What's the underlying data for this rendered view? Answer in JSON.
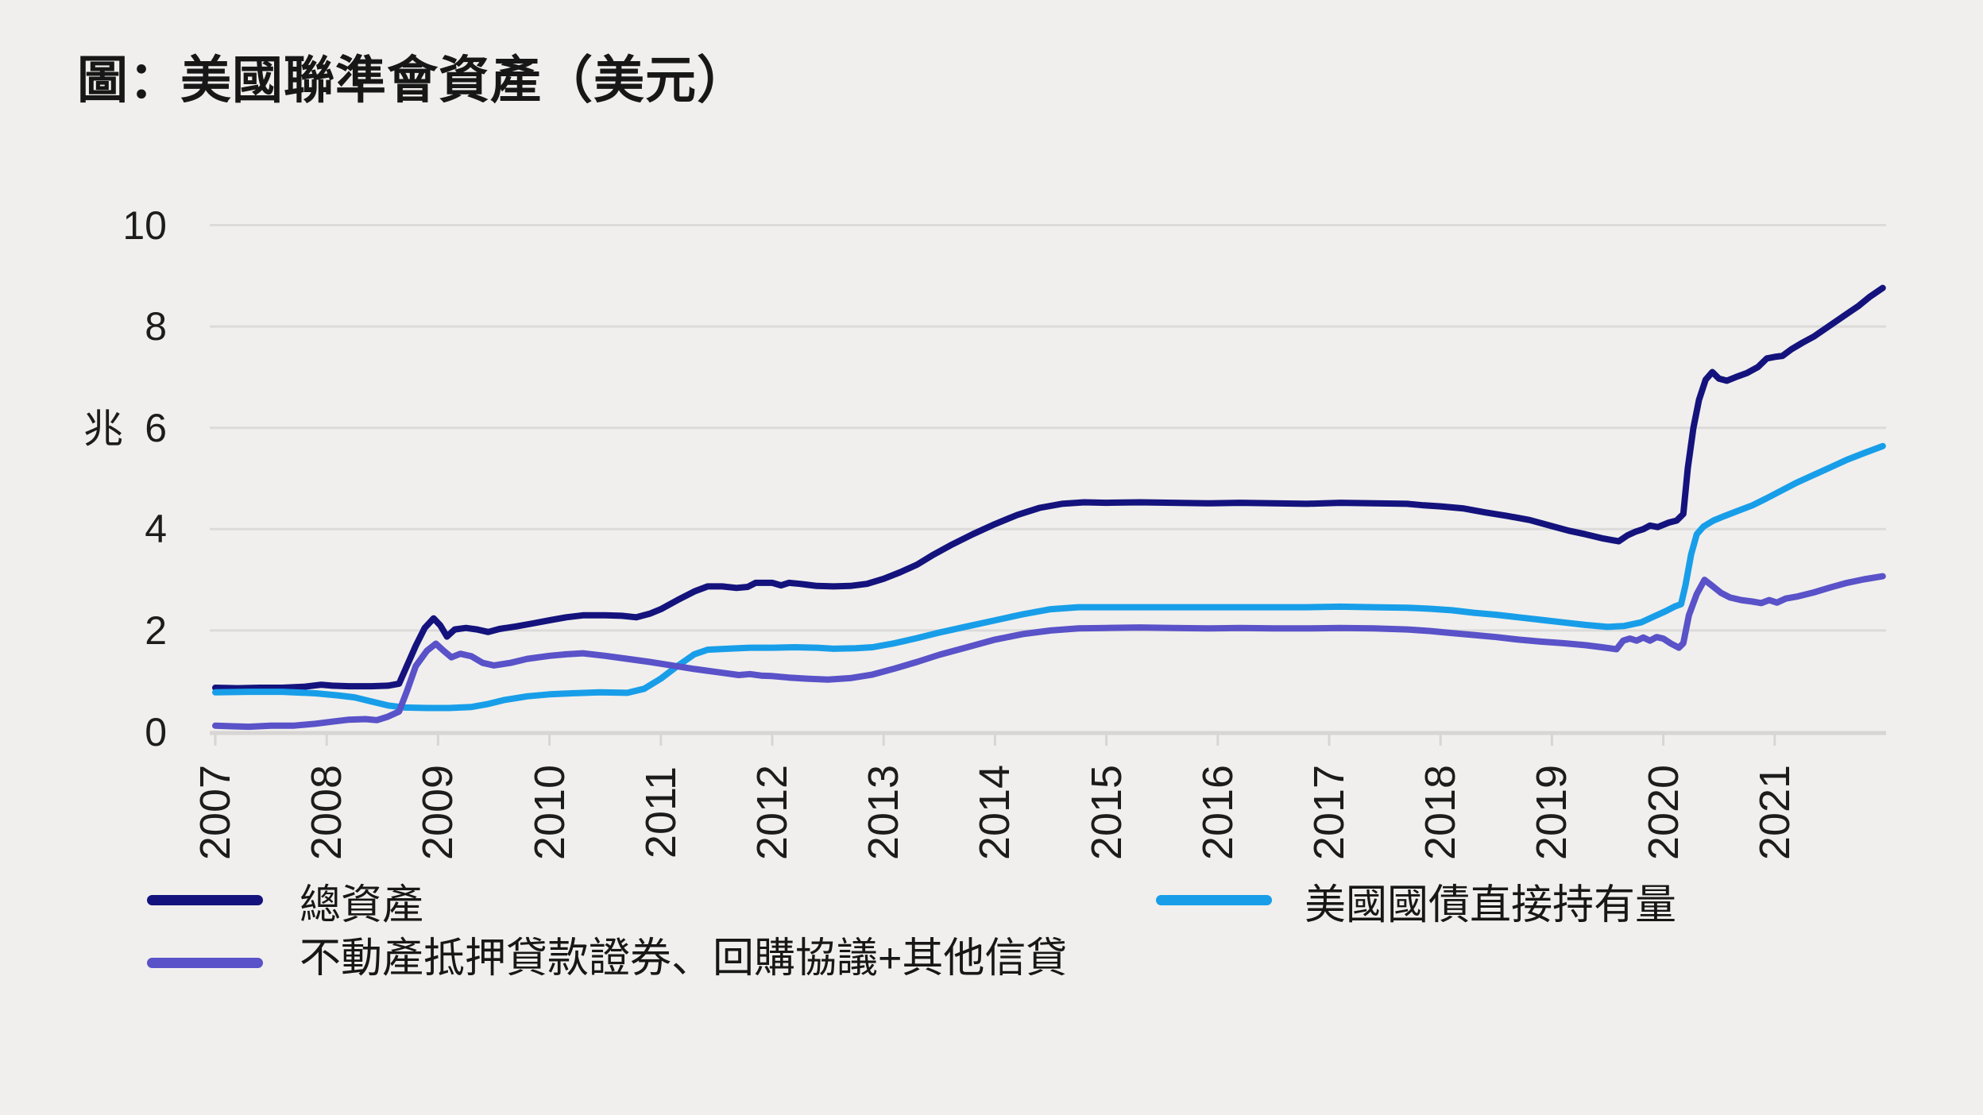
{
  "page": {
    "background": "#f0efed",
    "text_color": "#1a1a1a"
  },
  "title": "圖：美國聯準會資產（美元）",
  "y_axis": {
    "unit_label": "兆",
    "ticks": [
      "0",
      "2",
      "4",
      "6",
      "8",
      "10"
    ]
  },
  "x_axis": {
    "ticks": [
      "2007",
      "2008",
      "2009",
      "2010",
      "2011",
      "2012",
      "2013",
      "2014",
      "2015",
      "2016",
      "2017",
      "2018",
      "2019",
      "2020",
      "2021"
    ]
  },
  "legend": {
    "items": [
      {
        "id": "total-assets",
        "label": "總資產",
        "color": "#14137d"
      },
      {
        "id": "us-treasury-direct-holdings",
        "label": "美國國債直接持有量",
        "color": "#189ee9"
      },
      {
        "id": "mbs-repo-other-credit",
        "label": "不動產抵押貸款證券、回購協議+其他信貸",
        "color": "#5a52c8"
      }
    ]
  },
  "chart_data": {
    "type": "line",
    "title": "圖：美國聯準會資產（美元）",
    "xlabel": "",
    "ylabel": "兆",
    "unit": "trillion USD",
    "ylim": [
      0,
      10
    ],
    "xlim": [
      2007,
      2022.05
    ],
    "grid": "horizontal-only",
    "legend_position": "bottom",
    "x_tick_years": [
      2007,
      2008,
      2009,
      2010,
      2011,
      2012,
      2013,
      2014,
      2015,
      2016,
      2017,
      2018,
      2019,
      2020,
      2021
    ],
    "y_tick_values": [
      0,
      2,
      4,
      6,
      8,
      10
    ],
    "colors": {
      "background": "#f0efed",
      "gridline": "#dcdbd9",
      "baseline": "#d7d6d4"
    },
    "series": [
      {
        "name": "總資產",
        "id": "total-assets",
        "color": "#14137d",
        "points": [
          [
            2007.0,
            0.87
          ],
          [
            2007.2,
            0.86
          ],
          [
            2007.4,
            0.87
          ],
          [
            2007.6,
            0.87
          ],
          [
            2007.8,
            0.89
          ],
          [
            2007.95,
            0.93
          ],
          [
            2008.05,
            0.91
          ],
          [
            2008.2,
            0.9
          ],
          [
            2008.4,
            0.9
          ],
          [
            2008.55,
            0.91
          ],
          [
            2008.65,
            0.95
          ],
          [
            2008.72,
            1.3
          ],
          [
            2008.8,
            1.7
          ],
          [
            2008.88,
            2.05
          ],
          [
            2008.96,
            2.24
          ],
          [
            2009.02,
            2.1
          ],
          [
            2009.08,
            1.88
          ],
          [
            2009.15,
            2.02
          ],
          [
            2009.25,
            2.05
          ],
          [
            2009.35,
            2.02
          ],
          [
            2009.45,
            1.97
          ],
          [
            2009.55,
            2.03
          ],
          [
            2009.7,
            2.08
          ],
          [
            2009.85,
            2.14
          ],
          [
            2010.0,
            2.2
          ],
          [
            2010.15,
            2.26
          ],
          [
            2010.3,
            2.3
          ],
          [
            2010.5,
            2.3
          ],
          [
            2010.65,
            2.29
          ],
          [
            2010.78,
            2.26
          ],
          [
            2010.9,
            2.33
          ],
          [
            2011.0,
            2.42
          ],
          [
            2011.15,
            2.6
          ],
          [
            2011.3,
            2.77
          ],
          [
            2011.42,
            2.87
          ],
          [
            2011.55,
            2.87
          ],
          [
            2011.68,
            2.84
          ],
          [
            2011.78,
            2.86
          ],
          [
            2011.85,
            2.94
          ],
          [
            2012.0,
            2.94
          ],
          [
            2012.08,
            2.89
          ],
          [
            2012.15,
            2.94
          ],
          [
            2012.25,
            2.92
          ],
          [
            2012.4,
            2.88
          ],
          [
            2012.55,
            2.87
          ],
          [
            2012.7,
            2.88
          ],
          [
            2012.85,
            2.92
          ],
          [
            2013.0,
            3.02
          ],
          [
            2013.15,
            3.15
          ],
          [
            2013.3,
            3.3
          ],
          [
            2013.45,
            3.5
          ],
          [
            2013.6,
            3.68
          ],
          [
            2013.8,
            3.9
          ],
          [
            2014.0,
            4.1
          ],
          [
            2014.2,
            4.28
          ],
          [
            2014.4,
            4.42
          ],
          [
            2014.6,
            4.5
          ],
          [
            2014.8,
            4.53
          ],
          [
            2015.0,
            4.52
          ],
          [
            2015.3,
            4.53
          ],
          [
            2015.6,
            4.52
          ],
          [
            2015.9,
            4.51
          ],
          [
            2016.2,
            4.52
          ],
          [
            2016.5,
            4.51
          ],
          [
            2016.8,
            4.5
          ],
          [
            2017.1,
            4.52
          ],
          [
            2017.4,
            4.51
          ],
          [
            2017.7,
            4.5
          ],
          [
            2017.85,
            4.47
          ],
          [
            2018.0,
            4.45
          ],
          [
            2018.2,
            4.41
          ],
          [
            2018.4,
            4.33
          ],
          [
            2018.6,
            4.26
          ],
          [
            2018.8,
            4.18
          ],
          [
            2019.0,
            4.06
          ],
          [
            2019.15,
            3.97
          ],
          [
            2019.3,
            3.9
          ],
          [
            2019.45,
            3.82
          ],
          [
            2019.6,
            3.76
          ],
          [
            2019.68,
            3.88
          ],
          [
            2019.75,
            3.95
          ],
          [
            2019.82,
            4.0
          ],
          [
            2019.88,
            4.07
          ],
          [
            2019.95,
            4.04
          ],
          [
            2020.05,
            4.13
          ],
          [
            2020.12,
            4.17
          ],
          [
            2020.18,
            4.3
          ],
          [
            2020.22,
            5.2
          ],
          [
            2020.27,
            6.0
          ],
          [
            2020.32,
            6.55
          ],
          [
            2020.38,
            6.95
          ],
          [
            2020.44,
            7.1
          ],
          [
            2020.5,
            6.97
          ],
          [
            2020.57,
            6.93
          ],
          [
            2020.65,
            7.0
          ],
          [
            2020.75,
            7.08
          ],
          [
            2020.85,
            7.2
          ],
          [
            2020.93,
            7.37
          ],
          [
            2021.0,
            7.4
          ],
          [
            2021.07,
            7.42
          ],
          [
            2021.15,
            7.55
          ],
          [
            2021.25,
            7.68
          ],
          [
            2021.35,
            7.8
          ],
          [
            2021.45,
            7.95
          ],
          [
            2021.55,
            8.1
          ],
          [
            2021.65,
            8.25
          ],
          [
            2021.75,
            8.4
          ],
          [
            2021.85,
            8.58
          ],
          [
            2021.97,
            8.76
          ]
        ]
      },
      {
        "name": "美國國債直接持有量",
        "id": "us-treasury-direct-holdings",
        "color": "#189ee9",
        "points": [
          [
            2007.0,
            0.78
          ],
          [
            2007.3,
            0.79
          ],
          [
            2007.6,
            0.79
          ],
          [
            2007.9,
            0.76
          ],
          [
            2008.1,
            0.72
          ],
          [
            2008.25,
            0.68
          ],
          [
            2008.4,
            0.6
          ],
          [
            2008.55,
            0.52
          ],
          [
            2008.7,
            0.48
          ],
          [
            2008.9,
            0.47
          ],
          [
            2009.1,
            0.47
          ],
          [
            2009.3,
            0.49
          ],
          [
            2009.45,
            0.55
          ],
          [
            2009.6,
            0.63
          ],
          [
            2009.8,
            0.7
          ],
          [
            2010.0,
            0.74
          ],
          [
            2010.2,
            0.76
          ],
          [
            2010.45,
            0.78
          ],
          [
            2010.7,
            0.77
          ],
          [
            2010.85,
            0.85
          ],
          [
            2011.0,
            1.05
          ],
          [
            2011.15,
            1.3
          ],
          [
            2011.3,
            1.53
          ],
          [
            2011.42,
            1.62
          ],
          [
            2011.6,
            1.64
          ],
          [
            2011.8,
            1.66
          ],
          [
            2012.0,
            1.66
          ],
          [
            2012.2,
            1.67
          ],
          [
            2012.4,
            1.66
          ],
          [
            2012.55,
            1.64
          ],
          [
            2012.75,
            1.65
          ],
          [
            2012.9,
            1.67
          ],
          [
            2013.1,
            1.75
          ],
          [
            2013.3,
            1.85
          ],
          [
            2013.5,
            1.96
          ],
          [
            2013.75,
            2.08
          ],
          [
            2014.0,
            2.2
          ],
          [
            2014.25,
            2.32
          ],
          [
            2014.5,
            2.42
          ],
          [
            2014.75,
            2.46
          ],
          [
            2015.0,
            2.46
          ],
          [
            2015.3,
            2.46
          ],
          [
            2015.6,
            2.46
          ],
          [
            2015.9,
            2.46
          ],
          [
            2016.2,
            2.46
          ],
          [
            2016.5,
            2.46
          ],
          [
            2016.8,
            2.46
          ],
          [
            2017.1,
            2.47
          ],
          [
            2017.4,
            2.46
          ],
          [
            2017.7,
            2.45
          ],
          [
            2017.9,
            2.43
          ],
          [
            2018.1,
            2.4
          ],
          [
            2018.3,
            2.35
          ],
          [
            2018.5,
            2.31
          ],
          [
            2018.7,
            2.26
          ],
          [
            2018.9,
            2.21
          ],
          [
            2019.1,
            2.16
          ],
          [
            2019.3,
            2.11
          ],
          [
            2019.5,
            2.07
          ],
          [
            2019.65,
            2.09
          ],
          [
            2019.8,
            2.16
          ],
          [
            2019.92,
            2.28
          ],
          [
            2020.02,
            2.38
          ],
          [
            2020.1,
            2.47
          ],
          [
            2020.16,
            2.52
          ],
          [
            2020.2,
            2.9
          ],
          [
            2020.25,
            3.5
          ],
          [
            2020.3,
            3.9
          ],
          [
            2020.36,
            4.05
          ],
          [
            2020.45,
            4.17
          ],
          [
            2020.55,
            4.26
          ],
          [
            2020.67,
            4.36
          ],
          [
            2020.8,
            4.47
          ],
          [
            2020.92,
            4.6
          ],
          [
            2021.05,
            4.75
          ],
          [
            2021.2,
            4.92
          ],
          [
            2021.35,
            5.07
          ],
          [
            2021.5,
            5.22
          ],
          [
            2021.65,
            5.37
          ],
          [
            2021.8,
            5.5
          ],
          [
            2021.97,
            5.64
          ]
        ]
      },
      {
        "name": "不動產抵押貸款證券、回購協議+其他信貸",
        "id": "mbs-repo-other-credit",
        "color": "#5a52c8",
        "points": [
          [
            2007.0,
            0.12
          ],
          [
            2007.15,
            0.11
          ],
          [
            2007.3,
            0.1
          ],
          [
            2007.5,
            0.12
          ],
          [
            2007.7,
            0.12
          ],
          [
            2007.9,
            0.16
          ],
          [
            2008.05,
            0.2
          ],
          [
            2008.2,
            0.24
          ],
          [
            2008.35,
            0.25
          ],
          [
            2008.45,
            0.23
          ],
          [
            2008.55,
            0.3
          ],
          [
            2008.65,
            0.4
          ],
          [
            2008.72,
            0.8
          ],
          [
            2008.8,
            1.3
          ],
          [
            2008.9,
            1.6
          ],
          [
            2008.98,
            1.74
          ],
          [
            2009.05,
            1.6
          ],
          [
            2009.12,
            1.47
          ],
          [
            2009.2,
            1.54
          ],
          [
            2009.3,
            1.49
          ],
          [
            2009.4,
            1.36
          ],
          [
            2009.5,
            1.31
          ],
          [
            2009.65,
            1.36
          ],
          [
            2009.8,
            1.44
          ],
          [
            2010.0,
            1.5
          ],
          [
            2010.15,
            1.53
          ],
          [
            2010.3,
            1.55
          ],
          [
            2010.5,
            1.5
          ],
          [
            2010.7,
            1.44
          ],
          [
            2010.9,
            1.38
          ],
          [
            2011.1,
            1.31
          ],
          [
            2011.3,
            1.24
          ],
          [
            2011.5,
            1.18
          ],
          [
            2011.7,
            1.12
          ],
          [
            2011.8,
            1.14
          ],
          [
            2011.9,
            1.11
          ],
          [
            2012.0,
            1.1
          ],
          [
            2012.15,
            1.07
          ],
          [
            2012.3,
            1.05
          ],
          [
            2012.5,
            1.03
          ],
          [
            2012.7,
            1.06
          ],
          [
            2012.9,
            1.13
          ],
          [
            2013.1,
            1.25
          ],
          [
            2013.3,
            1.38
          ],
          [
            2013.5,
            1.52
          ],
          [
            2013.75,
            1.67
          ],
          [
            2014.0,
            1.82
          ],
          [
            2014.25,
            1.93
          ],
          [
            2014.5,
            2.0
          ],
          [
            2014.75,
            2.04
          ],
          [
            2015.0,
            2.05
          ],
          [
            2015.3,
            2.06
          ],
          [
            2015.6,
            2.05
          ],
          [
            2015.9,
            2.04
          ],
          [
            2016.2,
            2.05
          ],
          [
            2016.5,
            2.04
          ],
          [
            2016.8,
            2.04
          ],
          [
            2017.1,
            2.05
          ],
          [
            2017.4,
            2.04
          ],
          [
            2017.7,
            2.02
          ],
          [
            2017.9,
            1.99
          ],
          [
            2018.1,
            1.95
          ],
          [
            2018.3,
            1.91
          ],
          [
            2018.5,
            1.87
          ],
          [
            2018.7,
            1.82
          ],
          [
            2018.9,
            1.78
          ],
          [
            2019.1,
            1.75
          ],
          [
            2019.3,
            1.71
          ],
          [
            2019.45,
            1.67
          ],
          [
            2019.58,
            1.63
          ],
          [
            2019.64,
            1.8
          ],
          [
            2019.7,
            1.84
          ],
          [
            2019.76,
            1.8
          ],
          [
            2019.82,
            1.86
          ],
          [
            2019.88,
            1.8
          ],
          [
            2019.94,
            1.87
          ],
          [
            2020.0,
            1.84
          ],
          [
            2020.07,
            1.74
          ],
          [
            2020.14,
            1.66
          ],
          [
            2020.18,
            1.75
          ],
          [
            2020.23,
            2.3
          ],
          [
            2020.3,
            2.72
          ],
          [
            2020.37,
            3.0
          ],
          [
            2020.44,
            2.88
          ],
          [
            2020.52,
            2.74
          ],
          [
            2020.6,
            2.65
          ],
          [
            2020.7,
            2.6
          ],
          [
            2020.8,
            2.57
          ],
          [
            2020.88,
            2.54
          ],
          [
            2020.95,
            2.6
          ],
          [
            2021.02,
            2.55
          ],
          [
            2021.1,
            2.63
          ],
          [
            2021.2,
            2.67
          ],
          [
            2021.35,
            2.75
          ],
          [
            2021.5,
            2.85
          ],
          [
            2021.65,
            2.94
          ],
          [
            2021.8,
            3.01
          ],
          [
            2021.97,
            3.07
          ]
        ]
      }
    ]
  }
}
